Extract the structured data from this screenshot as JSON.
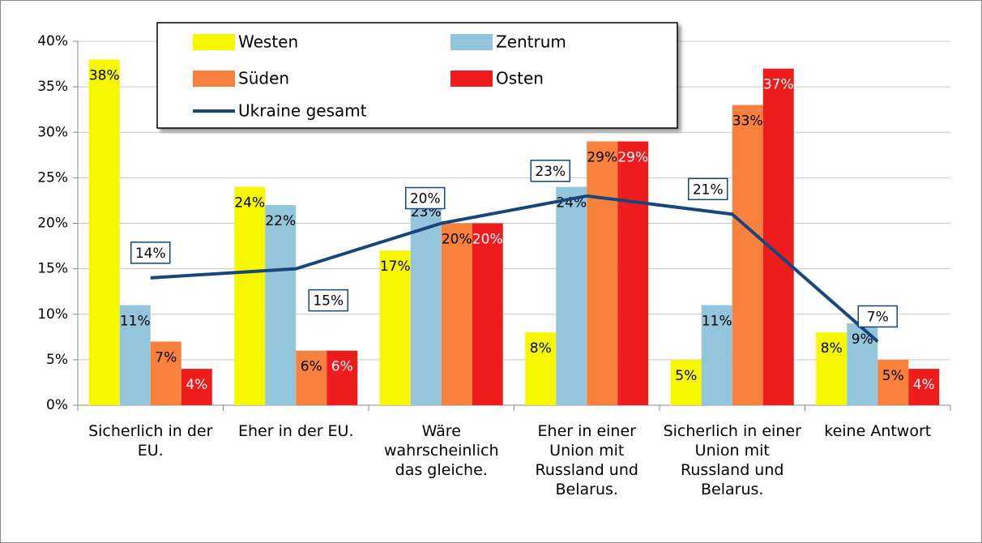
{
  "chart_data": {
    "type": "bar",
    "categories": [
      "Sicherlich in der EU.",
      "Eher in der EU.",
      "Wäre wahrscheinlich das gleiche.",
      "Eher in einer Union mit Russland und Belarus.",
      "Sicherlich in einer Union mit Russland und Belarus.",
      "keine Antwort"
    ],
    "series": [
      {
        "name": "Westen",
        "color": "#f7f700",
        "label_color": "#000000",
        "values": [
          38,
          24,
          17,
          8,
          5,
          8
        ],
        "value_labels": [
          "38%",
          "24%",
          "17%",
          "8%",
          "5%",
          "8%"
        ]
      },
      {
        "name": "Zentrum",
        "color": "#93c6dd",
        "label_color": "#000000",
        "values": [
          11,
          22,
          23,
          24,
          11,
          9
        ],
        "value_labels": [
          "11%",
          "22%",
          "23%",
          "24%",
          "11%",
          "9%"
        ]
      },
      {
        "name": "Süden",
        "color": "#f7813d",
        "label_color": "#000000",
        "values": [
          7,
          6,
          20,
          29,
          33,
          5
        ],
        "value_labels": [
          "7%",
          "6%",
          "20%",
          "29%",
          "33%",
          "5%"
        ]
      },
      {
        "name": "Osten",
        "color": "#ee1c1c",
        "label_color": "#ffffff",
        "values": [
          4,
          6,
          20,
          29,
          37,
          4
        ],
        "value_labels": [
          "4%",
          "6%",
          "20%",
          "29%",
          "37%",
          "4%"
        ]
      },
      {
        "name": "Ukraine gesamt",
        "type": "line",
        "color": "#17477a",
        "values": [
          14,
          15,
          20,
          23,
          21,
          7
        ],
        "value_labels": [
          "14%",
          "15%",
          "20%",
          "23%",
          "21%",
          "7%"
        ]
      }
    ],
    "ylim": [
      0,
      40
    ],
    "yticks": [
      {
        "value": 0,
        "label": "0%"
      },
      {
        "value": 5,
        "label": "5%"
      },
      {
        "value": 10,
        "label": "10%"
      },
      {
        "value": 15,
        "label": "15%"
      },
      {
        "value": 20,
        "label": "20%"
      },
      {
        "value": 25,
        "label": "25%"
      },
      {
        "value": 30,
        "label": "30%"
      },
      {
        "value": 35,
        "label": "35%"
      },
      {
        "value": 40,
        "label": "40%"
      }
    ],
    "grid": true
  }
}
